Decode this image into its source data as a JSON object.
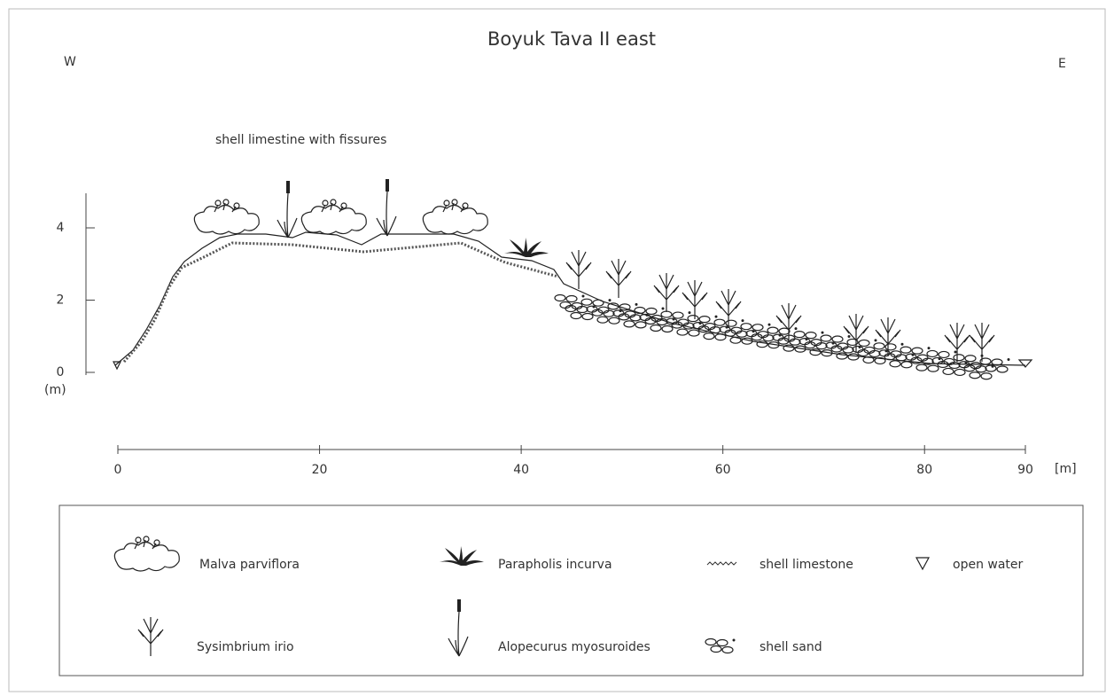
{
  "title": "Boyuk Tava II east",
  "west_label": "W",
  "east_label": "E",
  "annotation": "shell limestine with fissures",
  "y_axis": {
    "unit": "(m)",
    "ticks": [
      0,
      2,
      4
    ]
  },
  "x_axis": {
    "unit": "[m]",
    "ticks": [
      0,
      20,
      40,
      60,
      80,
      90
    ]
  },
  "legend": {
    "malva": "Malva parviflora",
    "parapholis": "Parapholis incurva",
    "limestone": "shell limestone",
    "water": "open water",
    "sysimbrium": "Sysimbrium irio",
    "alopecurus": "Alopecurus myosuroides",
    "sand": "shell sand"
  }
}
